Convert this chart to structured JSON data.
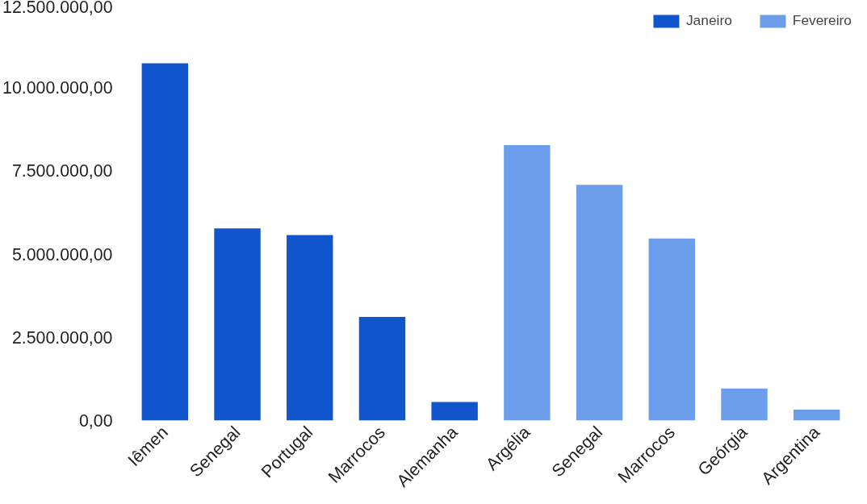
{
  "chart_data": {
    "type": "bar",
    "categories": [
      "Iêmen",
      "Senegal",
      "Portugal",
      "Marrocos",
      "Alemanha",
      "Argélia",
      "Senegal",
      "Marrocos",
      "Geórgia",
      "Argentina"
    ],
    "series": [
      {
        "name": "Janeiro",
        "color": "#1155cc",
        "values": [
          10730000,
          5770000,
          5570000,
          3110000,
          560000,
          null,
          null,
          null,
          null,
          null
        ]
      },
      {
        "name": "Fevereiro",
        "color": "#6d9eeb",
        "values": [
          null,
          null,
          null,
          null,
          null,
          8270000,
          7080000,
          5470000,
          960000,
          330000
        ]
      }
    ],
    "ylim": [
      0,
      12500000
    ],
    "yticks": [
      {
        "value": 0,
        "label": "0,00"
      },
      {
        "value": 2500000,
        "label": "2.500.000,00"
      },
      {
        "value": 5000000,
        "label": "5.000.000,00"
      },
      {
        "value": 7500000,
        "label": "7.500.000,00"
      },
      {
        "value": 10000000,
        "label": "10.000.000,00"
      },
      {
        "value": 12500000,
        "label": "12.500.000,00"
      }
    ],
    "grid": false,
    "legend": "top right"
  }
}
